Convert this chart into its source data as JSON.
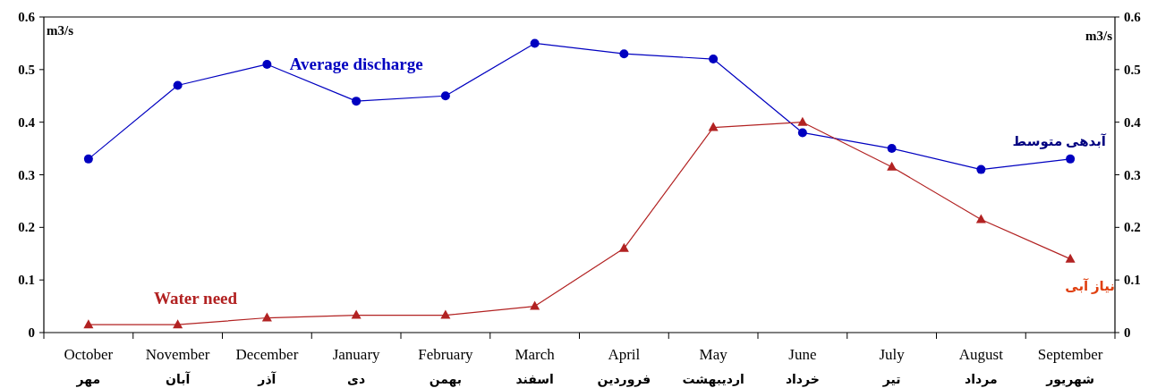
{
  "chart_data": {
    "type": "line",
    "categories": [
      "October\nمهر",
      "November\nآبان",
      "December\nآذر",
      "January\nدی",
      "February\nبهمن",
      "March\nاسفند",
      "April\nفروردین",
      "May\nاردیبهشت",
      "June\nخرداد",
      "July\nتیر",
      "August\nمرداد",
      "September\nشهریور"
    ],
    "series": [
      {
        "name": "Average discharge",
        "color": "#0000c0",
        "marker": "circle",
        "values": [
          0.33,
          0.47,
          0.51,
          0.44,
          0.45,
          0.55,
          0.53,
          0.52,
          0.38,
          0.35,
          0.31,
          0.33
        ]
      },
      {
        "name": "Water need",
        "color": "#b22222",
        "marker": "triangle",
        "values": [
          0.015,
          0.015,
          0.028,
          0.033,
          0.033,
          0.05,
          0.16,
          0.39,
          0.4,
          0.315,
          0.215,
          0.14
        ]
      }
    ],
    "ylabel": "m3/s",
    "y2label": "m3/s",
    "ylim": [
      0,
      0.6
    ],
    "yticks": [
      0,
      0.1,
      0.2,
      0.3,
      0.4,
      0.5,
      0.6
    ],
    "y2lim": [
      0,
      0.6
    ],
    "y2ticks": [
      0,
      0.1,
      0.2,
      0.3,
      0.4,
      0.5,
      0.6
    ],
    "annotations": [
      "آبدهی متوسط",
      "نیاز آبی"
    ],
    "grid": false
  }
}
